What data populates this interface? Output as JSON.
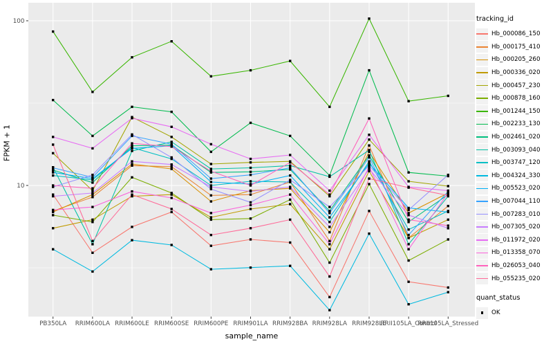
{
  "chart_data": {
    "type": "line",
    "title": "",
    "xlabel": "sample_name",
    "ylabel": "FPKM + 1",
    "y_scale": "log10",
    "y_axis_ticks": [
      100,
      10
    ],
    "y_minor_gridlines": [
      31.62,
      3.162
    ],
    "ylim": [
      1.6,
      128
    ],
    "grid": true,
    "legend_position": "right",
    "panel_bg": "#EBEBEB",
    "grid_color": "#FFFFFF",
    "tick_label_color": "#4D4D4D",
    "marker": "black-square",
    "x_categories": [
      "PB350LA",
      "RRIM600LA",
      "RRIM600LE",
      "RRIM600SE",
      "RRIM600PE",
      "RRIM901LA",
      "RRIM928BA",
      "RRIM928LA",
      "RRIM928LE",
      "RRII105LA_Control",
      "RRII105LA_Stressed"
    ],
    "series": [
      {
        "name": "Hb_000086_150",
        "color": "#F8766D",
        "values": [
          8.8,
          3.9,
          5.6,
          6.9,
          4.3,
          4.7,
          4.5,
          2.1,
          7.0,
          2.6,
          2.4
        ]
      },
      {
        "name": "Hb_000175_410",
        "color": "#EA8331",
        "values": [
          7.0,
          8.5,
          13.2,
          13.0,
          8.7,
          8.8,
          10.5,
          4.6,
          17.5,
          4.8,
          7.5
        ]
      },
      {
        "name": "Hb_000205_260",
        "color": "#D89000",
        "values": [
          6.9,
          8.8,
          13.5,
          12.6,
          8.0,
          9.3,
          9.6,
          5.2,
          16.0,
          6.8,
          9.0
        ]
      },
      {
        "name": "Hb_000336_020",
        "color": "#C09B00",
        "values": [
          5.5,
          6.2,
          8.6,
          8.8,
          6.4,
          7.2,
          7.7,
          4.1,
          12.2,
          4.8,
          6.2
        ]
      },
      {
        "name": "Hb_000457_230",
        "color": "#A3A500",
        "values": [
          15.7,
          9.3,
          26.0,
          19.7,
          13.5,
          13.8,
          14.0,
          8.6,
          19.0,
          10.6,
          9.9
        ]
      },
      {
        "name": "Hb_000878_160",
        "color": "#7CAE00",
        "values": [
          6.6,
          6.0,
          11.2,
          9.0,
          6.2,
          6.3,
          8.2,
          3.4,
          10.2,
          3.5,
          4.7
        ]
      },
      {
        "name": "Hb_001244_150",
        "color": "#39B600",
        "values": [
          86,
          37,
          60,
          75,
          46,
          50,
          57,
          30,
          103,
          32.5,
          35
        ]
      },
      {
        "name": "Hb_002233_130",
        "color": "#00BB4E",
        "values": [
          33,
          20,
          30,
          28,
          16,
          24,
          20,
          11.5,
          50,
          12.0,
          11.4
        ]
      },
      {
        "name": "Hb_002461_020",
        "color": "#00BF7D",
        "values": [
          12.4,
          10.4,
          17.4,
          17.6,
          12.0,
          12.1,
          12.5,
          7.0,
          15.2,
          6.0,
          8.8
        ]
      },
      {
        "name": "Hb_003093_040",
        "color": "#00C1A3",
        "values": [
          12.9,
          4.4,
          16.2,
          18.4,
          12.6,
          12.8,
          13.2,
          11.3,
          16.4,
          4.4,
          8.6
        ]
      },
      {
        "name": "Hb_003747_120",
        "color": "#00BFC4",
        "values": [
          11.5,
          10.8,
          17.0,
          14.5,
          10.0,
          10.6,
          10.5,
          6.0,
          14.0,
          5.4,
          7.0
        ]
      },
      {
        "name": "Hb_004324_330",
        "color": "#00BAE0",
        "values": [
          4.1,
          3.0,
          4.65,
          4.35,
          3.1,
          3.17,
          3.25,
          1.75,
          5.1,
          1.9,
          2.25
        ]
      },
      {
        "name": "Hb_005523_020",
        "color": "#00B0F6",
        "values": [
          12.0,
          11.0,
          16.8,
          17.4,
          10.5,
          10.2,
          11.5,
          6.4,
          13.6,
          7.3,
          6.9
        ]
      },
      {
        "name": "Hb_007044_110",
        "color": "#35A2FF",
        "values": [
          12.8,
          11.2,
          20.0,
          17.8,
          11.0,
          11.6,
          12.8,
          6.8,
          14.8,
          5.0,
          9.2
        ]
      },
      {
        "name": "Hb_007283_010",
        "color": "#9590FF",
        "values": [
          9.8,
          11.6,
          20.4,
          14.8,
          9.5,
          7.9,
          10.8,
          7.4,
          13.2,
          7.1,
          11.6
        ]
      },
      {
        "name": "Hb_007305_020",
        "color": "#C77CFF",
        "values": [
          8.6,
          9.0,
          14.0,
          13.4,
          9.8,
          9.2,
          9.8,
          5.6,
          12.6,
          6.6,
          5.5
        ]
      },
      {
        "name": "Hb_011972_020",
        "color": "#E76BF3",
        "values": [
          19.7,
          16.8,
          25.6,
          22.7,
          17.8,
          14.5,
          15.3,
          9.3,
          20.3,
          9.8,
          9.3
        ]
      },
      {
        "name": "Hb_013358_070",
        "color": "#FA62DB",
        "values": [
          7.1,
          7.4,
          9.2,
          8.4,
          6.8,
          7.6,
          8.8,
          4.4,
          13.0,
          4.1,
          9.0
        ]
      },
      {
        "name": "Hb_026053_040",
        "color": "#FF62BC",
        "values": [
          10.0,
          9.6,
          18.0,
          17.2,
          12.2,
          10.0,
          13.8,
          8.8,
          25.5,
          6.2,
          5.7
        ]
      },
      {
        "name": "Hb_055235_020",
        "color": "#FF6A98",
        "values": [
          17.7,
          4.6,
          8.8,
          7.2,
          5.0,
          5.5,
          6.2,
          2.8,
          11.0,
          9.7,
          8.7
        ]
      }
    ],
    "legend": {
      "series_title": "tracking_id",
      "shape_title": "quant_status",
      "shape_items": [
        {
          "label": "OK",
          "marker": "black-square"
        }
      ]
    }
  }
}
